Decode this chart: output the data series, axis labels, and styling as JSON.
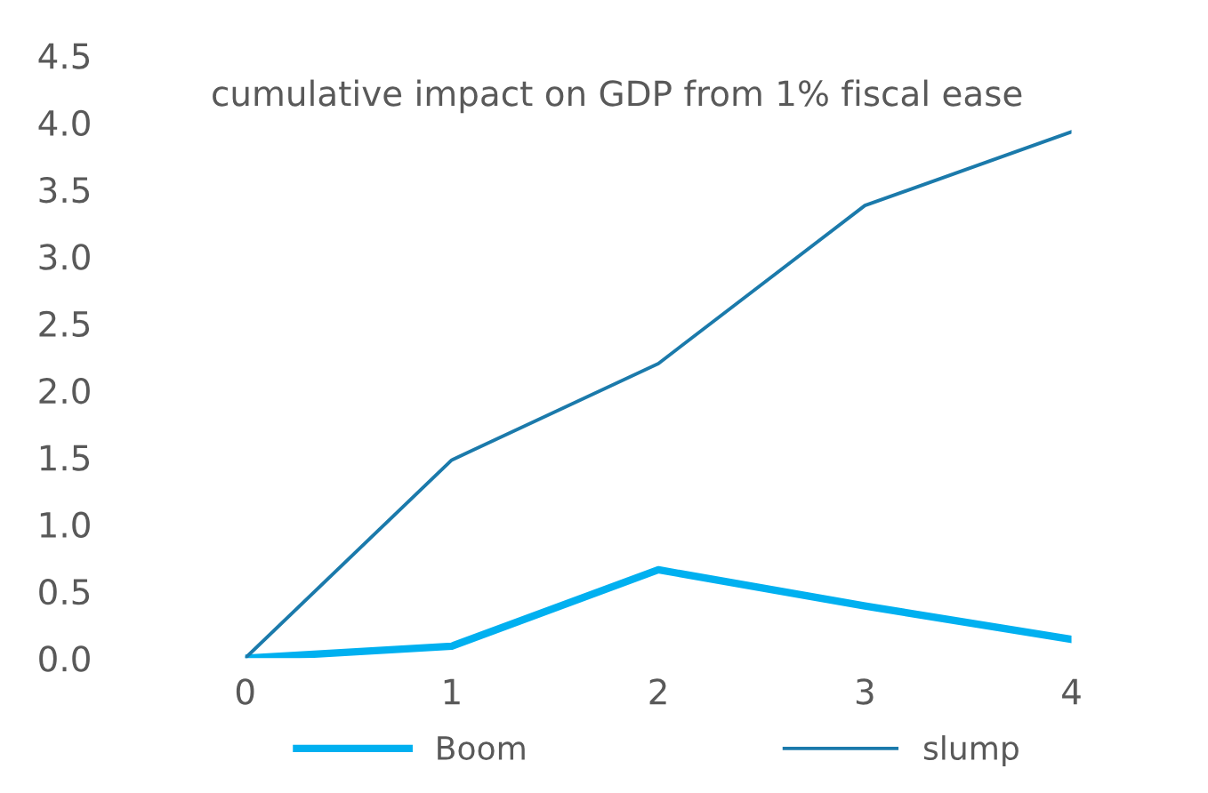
{
  "chart_data": {
    "type": "line",
    "title": "cumulative impact on GDP from 1% fiscal ease",
    "x": [
      0,
      1,
      2,
      3,
      4
    ],
    "series": [
      {
        "name": "Boom",
        "color": "#00b0f0",
        "values": [
          0,
          0.09,
          0.66,
          0.39,
          0.14
        ]
      },
      {
        "name": "slump",
        "color": "#1b7aab",
        "values": [
          0,
          1.48,
          2.2,
          3.38,
          3.93
        ]
      }
    ],
    "xlim": [
      0,
      4
    ],
    "xticks": [
      0,
      1,
      2,
      3,
      4
    ],
    "ylim": [
      0,
      4.5
    ],
    "yticks": [
      {
        "value": 0,
        "label": "0.0"
      },
      {
        "value": 0.5,
        "label": "0.5"
      },
      {
        "value": 1,
        "label": "1.0"
      },
      {
        "value": 1.5,
        "label": "1.5"
      },
      {
        "value": 2,
        "label": "2.0"
      },
      {
        "value": 2.5,
        "label": "2.5"
      },
      {
        "value": 3,
        "label": "3.0"
      },
      {
        "value": 3.5,
        "label": "3.5"
      },
      {
        "value": 4,
        "label": "4.0"
      },
      {
        "value": 4.5,
        "label": "4.5"
      }
    ],
    "grid": false,
    "legend": "bottom",
    "marker": "none",
    "line_style": "solid"
  }
}
